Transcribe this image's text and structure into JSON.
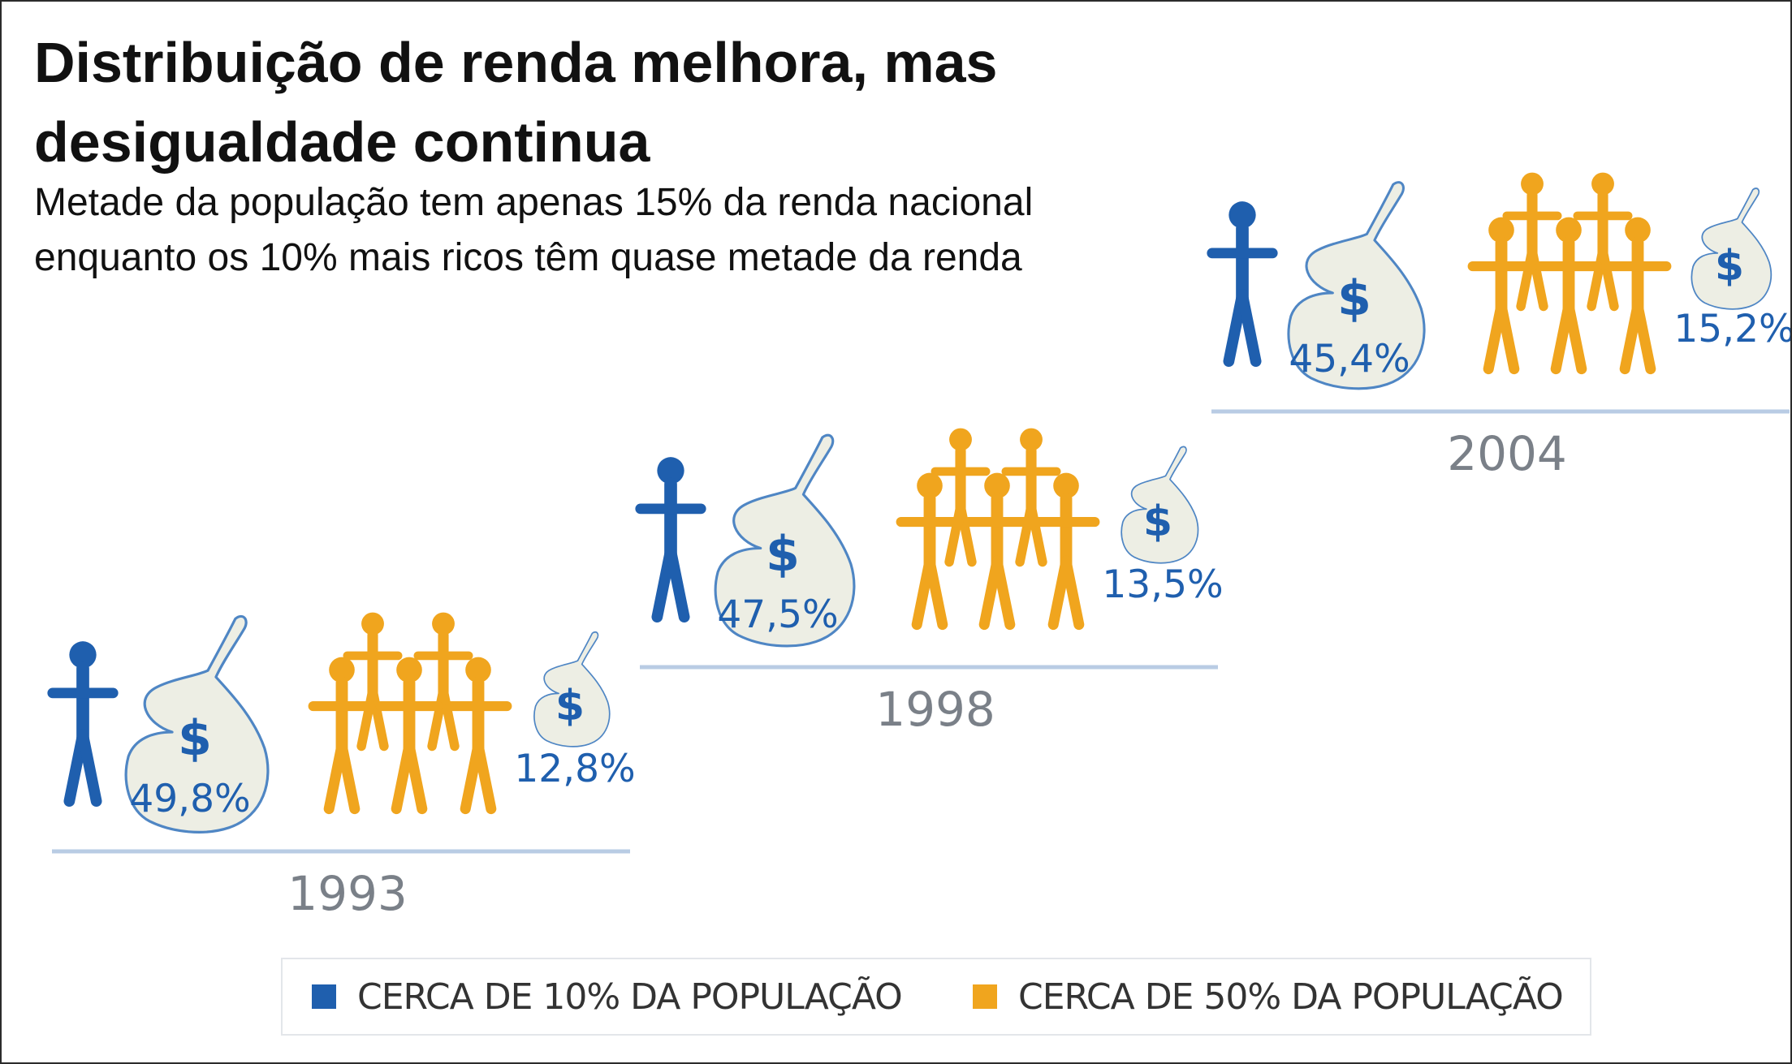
{
  "title": "Distribuição de renda melhora, mas desigualdade continua",
  "subtitle": "Metade da população tem apenas 15% da renda nacional enquanto os 10% mais ricos têm quase metade da renda",
  "icons": {
    "rich_person": "person-icon",
    "poor_people": "people-group-icon",
    "money_bag": "money-bag-icon",
    "currency_symbol": "$"
  },
  "colors": {
    "top10": "#1f5fae",
    "bottom50": "#f0a51e",
    "bag_fill": "#edeee4",
    "bag_stroke": "#4f86c4",
    "baseline": "#b9cce4",
    "year_text": "#7a8088"
  },
  "chart_data": {
    "type": "pictograph",
    "unit": "%",
    "categories": [
      "1993",
      "1998",
      "2004"
    ],
    "series": [
      {
        "name": "CERCA DE 10% DA POPULAÇÃO",
        "values": [
          49.8,
          47.5,
          45.4
        ],
        "labels": [
          "49,8%",
          "47,5%",
          "45,4%"
        ]
      },
      {
        "name": "CERCA DE 50% DA POPULAÇÃO",
        "values": [
          12.8,
          13.5,
          15.2
        ],
        "labels": [
          "12,8%",
          "13,5%",
          "15,2%"
        ]
      }
    ]
  },
  "legend": [
    {
      "label": "CERCA DE 10% DA POPULAÇÃO",
      "color": "#1f5fae"
    },
    {
      "label": "CERCA DE 50% DA POPULAÇÃO",
      "color": "#f0a51e"
    }
  ]
}
